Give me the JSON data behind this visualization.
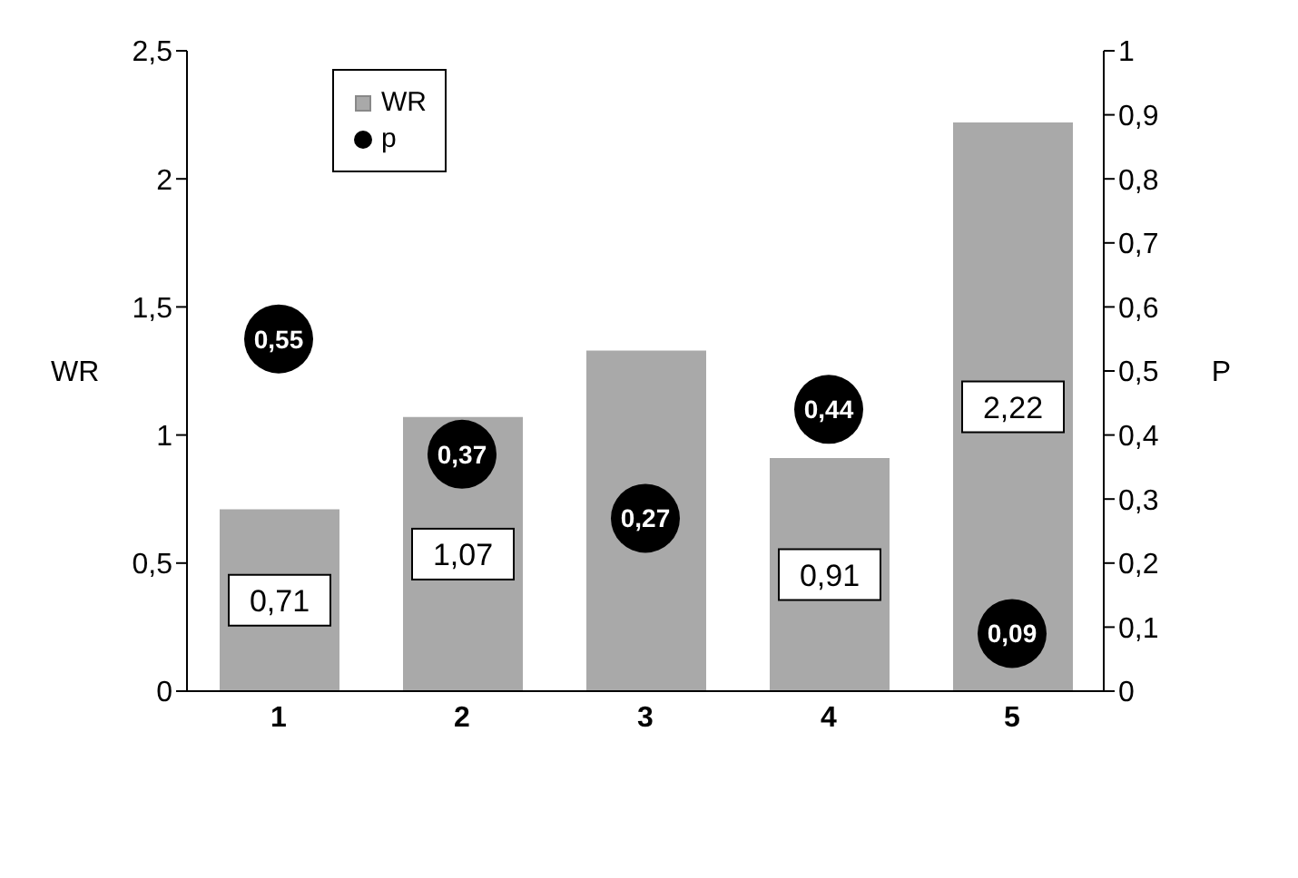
{
  "chart_data": {
    "type": "bar",
    "categories": [
      "1",
      "2",
      "3",
      "4",
      "5"
    ],
    "ylabel": "WR",
    "y2label": "P",
    "ylim": [
      0,
      2.5
    ],
    "yticks": [
      {
        "value": 0,
        "label": "0"
      },
      {
        "value": 0.5,
        "label": "0,5"
      },
      {
        "value": 1,
        "label": "1"
      },
      {
        "value": 1.5,
        "label": "1,5"
      },
      {
        "value": 2,
        "label": "2"
      },
      {
        "value": 2.5,
        "label": "2,5"
      }
    ],
    "y2lim": [
      0,
      1
    ],
    "y2ticks": [
      {
        "value": 0,
        "label": "0"
      },
      {
        "value": 0.1,
        "label": "0,1"
      },
      {
        "value": 0.2,
        "label": "0,2"
      },
      {
        "value": 0.3,
        "label": "0,3"
      },
      {
        "value": 0.4,
        "label": "0,4"
      },
      {
        "value": 0.5,
        "label": "0,5"
      },
      {
        "value": 0.6,
        "label": "0,6"
      },
      {
        "value": 0.7,
        "label": "0,7"
      },
      {
        "value": 0.8,
        "label": "0,8"
      },
      {
        "value": 0.9,
        "label": "0,9"
      },
      {
        "value": 1,
        "label": "1"
      }
    ],
    "series": [
      {
        "name": "WR",
        "color": "#a9a9a9",
        "values": [
          0.71,
          1.07,
          1.33,
          0.91,
          2.22
        ],
        "value_labels": [
          "0,71",
          "1,07",
          null,
          "0,91",
          "2,22"
        ]
      },
      {
        "name": "p",
        "type": "scatter",
        "axis": "y2",
        "color": "#000000",
        "values": [
          0.55,
          0.37,
          0.27,
          0.44,
          0.09
        ],
        "value_labels": [
          "0,55",
          "0,37",
          "0,27",
          "0,44",
          "0,09"
        ]
      }
    ],
    "legend": "top left",
    "marker": "circle"
  }
}
